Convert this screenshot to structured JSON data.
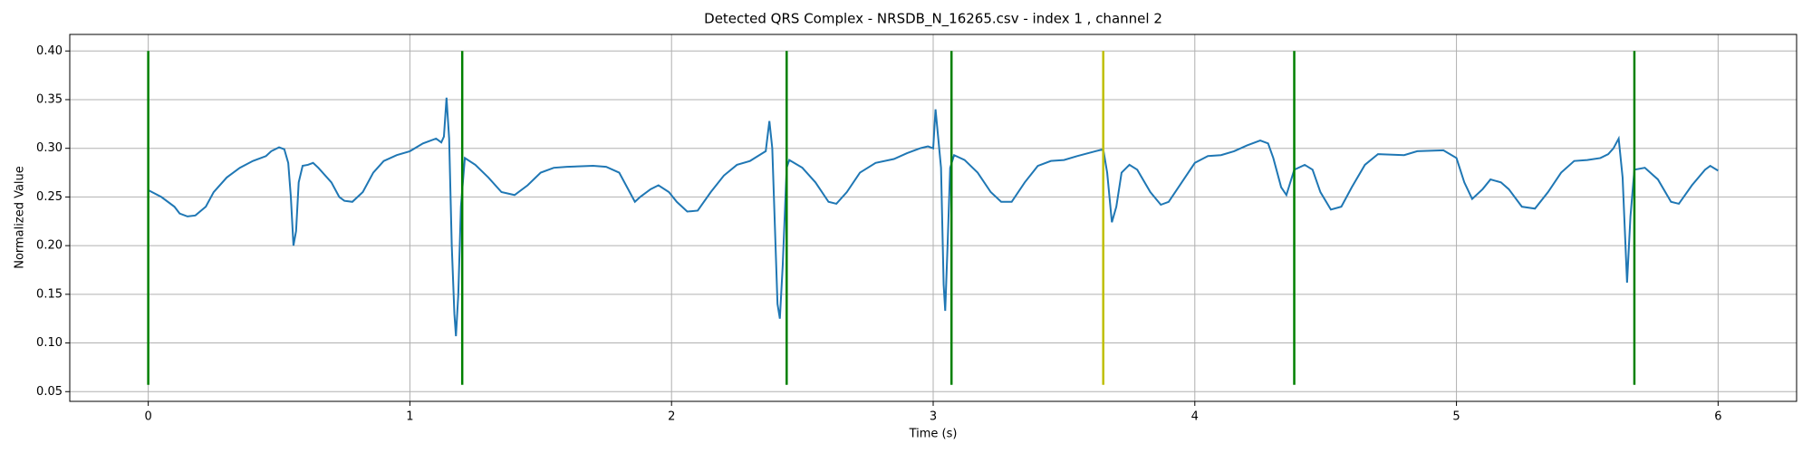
{
  "chart_data": {
    "type": "line",
    "title": "Detected QRS Complex - NRSDB_N_16265.csv - index 1 , channel 2",
    "x_label": "Time (s)",
    "y_label": "Normalized Value",
    "color": "#1f77b4",
    "grid": true,
    "xlim": [
      -0.3,
      6.3
    ],
    "ylim": [
      0.04,
      0.417
    ],
    "xticks": [
      0,
      1,
      2,
      3,
      4,
      5,
      6
    ],
    "yticks": [
      0.05,
      {
        "value": 0.1,
        "label": "0.10"
      },
      0.15,
      {
        "value": 0.2,
        "label": "0.20"
      },
      0.25,
      {
        "value": 0.3,
        "label": "0.30"
      },
      0.35,
      {
        "value": 0.4,
        "label": "0.40"
      }
    ],
    "x": [
      0,
      0.05,
      0.1,
      0.12,
      0.15,
      0.18,
      0.22,
      0.25,
      0.3,
      0.35,
      0.4,
      0.45,
      0.47,
      0.5,
      0.52,
      0.535,
      0.545,
      0.555,
      0.565,
      0.575,
      0.59,
      0.61,
      0.63,
      0.65,
      0.7,
      0.73,
      0.75,
      0.78,
      0.82,
      0.86,
      0.9,
      0.95,
      1.0,
      1.05,
      1.1,
      1.12,
      1.13,
      1.14,
      1.15,
      1.16,
      1.17,
      1.176,
      1.185,
      1.195,
      1.21,
      1.25,
      1.3,
      1.35,
      1.4,
      1.45,
      1.5,
      1.55,
      1.6,
      1.7,
      1.75,
      1.8,
      1.83,
      1.86,
      1.88,
      1.92,
      1.95,
      1.99,
      2.02,
      2.06,
      2.1,
      2.15,
      2.2,
      2.25,
      2.3,
      2.33,
      2.36,
      2.374,
      2.385,
      2.395,
      2.405,
      2.414,
      2.425,
      2.44,
      2.45,
      2.5,
      2.55,
      2.6,
      2.63,
      2.67,
      2.72,
      2.78,
      2.85,
      2.9,
      2.95,
      2.98,
      3.0,
      3.009,
      3.03,
      3.04,
      3.046,
      3.055,
      3.065,
      3.08,
      3.12,
      3.17,
      3.22,
      3.26,
      3.3,
      3.35,
      3.4,
      3.45,
      3.5,
      3.55,
      3.62,
      3.65,
      3.665,
      3.683,
      3.7,
      3.72,
      3.75,
      3.78,
      3.83,
      3.87,
      3.9,
      3.95,
      4.0,
      4.05,
      4.1,
      4.15,
      4.2,
      4.25,
      4.28,
      4.3,
      4.33,
      4.35,
      4.38,
      4.42,
      4.45,
      4.48,
      4.52,
      4.56,
      4.6,
      4.65,
      4.7,
      4.8,
      4.85,
      4.95,
      5.0,
      5.03,
      5.06,
      5.1,
      5.13,
      5.17,
      5.2,
      5.25,
      5.3,
      5.35,
      5.4,
      5.45,
      5.5,
      5.55,
      5.58,
      5.6,
      5.62,
      5.635,
      5.652,
      5.665,
      5.68,
      5.72,
      5.77,
      5.82,
      5.85,
      5.9,
      5.95,
      5.97,
      6.0
    ],
    "values": [
      0.257,
      0.25,
      0.24,
      0.233,
      0.23,
      0.231,
      0.24,
      0.255,
      0.27,
      0.28,
      0.287,
      0.292,
      0.297,
      0.301,
      0.299,
      0.285,
      0.25,
      0.2,
      0.215,
      0.265,
      0.282,
      0.283,
      0.285,
      0.28,
      0.265,
      0.25,
      0.246,
      0.245,
      0.255,
      0.275,
      0.287,
      0.293,
      0.297,
      0.305,
      0.31,
      0.306,
      0.312,
      0.352,
      0.31,
      0.2,
      0.13,
      0.107,
      0.15,
      0.24,
      0.29,
      0.283,
      0.27,
      0.255,
      0.252,
      0.262,
      0.275,
      0.28,
      0.281,
      0.282,
      0.281,
      0.275,
      0.26,
      0.245,
      0.25,
      0.258,
      0.262,
      0.255,
      0.245,
      0.235,
      0.236,
      0.255,
      0.272,
      0.283,
      0.287,
      0.292,
      0.297,
      0.328,
      0.3,
      0.22,
      0.14,
      0.125,
      0.18,
      0.28,
      0.288,
      0.28,
      0.265,
      0.245,
      0.243,
      0.255,
      0.275,
      0.285,
      0.289,
      0.295,
      0.3,
      0.302,
      0.3,
      0.34,
      0.28,
      0.16,
      0.133,
      0.2,
      0.28,
      0.293,
      0.288,
      0.275,
      0.255,
      0.245,
      0.245,
      0.265,
      0.282,
      0.287,
      0.288,
      0.292,
      0.297,
      0.299,
      0.275,
      0.224,
      0.24,
      0.275,
      0.283,
      0.278,
      0.255,
      0.242,
      0.245,
      0.265,
      0.285,
      0.292,
      0.293,
      0.297,
      0.303,
      0.308,
      0.305,
      0.29,
      0.26,
      0.252,
      0.278,
      0.283,
      0.278,
      0.255,
      0.237,
      0.24,
      0.26,
      0.283,
      0.294,
      0.293,
      0.297,
      0.298,
      0.29,
      0.265,
      0.248,
      0.258,
      0.268,
      0.265,
      0.258,
      0.24,
      0.238,
      0.255,
      0.275,
      0.287,
      0.288,
      0.29,
      0.294,
      0.3,
      0.31,
      0.27,
      0.162,
      0.23,
      0.278,
      0.28,
      0.268,
      0.245,
      0.243,
      0.262,
      0.278,
      0.282,
      0.277
    ],
    "vlines": {
      "x": [
        0,
        1.2,
        2.44,
        3.07,
        3.65,
        4.38,
        5.68
      ],
      "colors": [
        "#008000",
        "#008000",
        "#008000",
        "#008000",
        "#bfbf00",
        "#008000",
        "#008000"
      ],
      "ymin": 0.057,
      "ymax": 0.4
    }
  }
}
